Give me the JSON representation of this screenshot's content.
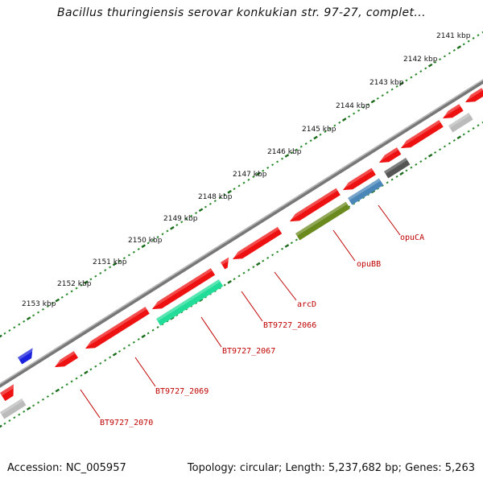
{
  "title": "Bacillus thuringiensis serovar konkukian str. 97-27, complet...",
  "footer": {
    "accession": "Accession: NC_005957",
    "stats": "Topology: circular; Length: 5,237,682 bp; Genes: 5,263"
  },
  "ticks": [
    "2141 kbp",
    "2142 kbp",
    "2143 kbp",
    "2144 kbp",
    "2145 kbp",
    "2146 kbp",
    "2147 kbp",
    "2148 kbp",
    "2149 kbp",
    "2150 kbp",
    "2151 kbp",
    "2152 kbp",
    "2153 kbp"
  ],
  "colors": {
    "red": "#ee1111",
    "blue": "#1a22dd",
    "green": "#22dd99",
    "olive": "#6a8a1e",
    "steel": "#4a86b8",
    "darkgray": "#555555",
    "lightgray": "#bbbbbb",
    "label": "#c00000"
  },
  "gene_labels": [
    "opuCA",
    "opuBB",
    "arcD",
    "BT9727_2066",
    "BT9727_2067",
    "BT9727_2069",
    "BT9727_2070"
  ]
}
